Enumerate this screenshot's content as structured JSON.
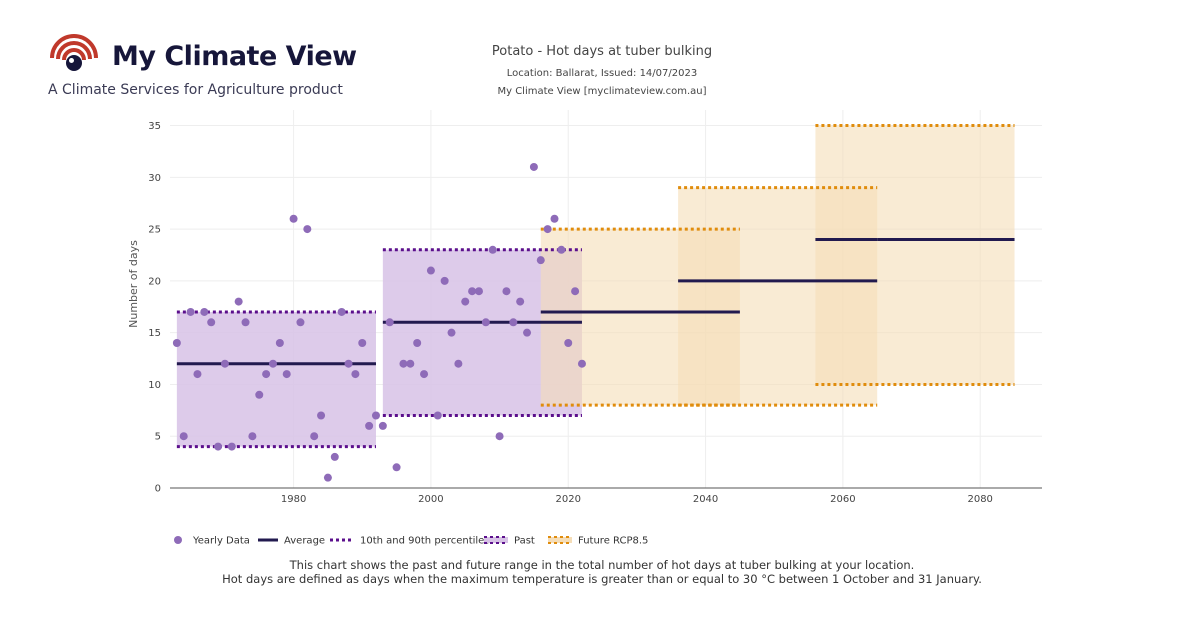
{
  "brand": {
    "name": "My Climate View",
    "tagline": "A Climate Services for Agriculture product",
    "colors": {
      "logo": "#c0392b",
      "name": "#16163a"
    }
  },
  "caption": {
    "line1": "This chart shows the past and future range in the total number of hot days at tuber bulking at your location.",
    "line2": "Hot days are defined as days when the maximum temperature is greater than or equal to 30 °C between 1 October and 31 January."
  },
  "chart_data": {
    "type": "scatter",
    "title": "Potato - Hot days at tuber bulking",
    "subtitle1": "Location: Ballarat, Issued: 14/07/2023",
    "subtitle2": "My Climate View [myclimateview.com.au]",
    "ylabel": "Number of days",
    "xlim": [
      1962,
      2089
    ],
    "ylim": [
      0,
      36.5
    ],
    "x_ticks": [
      1980,
      2000,
      2020,
      2040,
      2060,
      2080
    ],
    "y_ticks": [
      0,
      5,
      10,
      15,
      20,
      25,
      30,
      35
    ],
    "colors": {
      "points": "#8e6bb8",
      "average": "#221a4f",
      "past_fill": "#d7c2e6",
      "past_dots": "#5b0f8c",
      "future_fill": "#f5ddb7",
      "future_overlap": "#eec99a",
      "future_dots": "#e08c0c"
    },
    "yearly_data": {
      "x": [
        1963,
        1964,
        1965,
        1966,
        1967,
        1968,
        1969,
        1970,
        1971,
        1972,
        1973,
        1974,
        1975,
        1976,
        1977,
        1978,
        1979,
        1980,
        1981,
        1982,
        1983,
        1984,
        1985,
        1986,
        1987,
        1988,
        1989,
        1990,
        1991,
        1992,
        1993,
        1994,
        1995,
        1996,
        1997,
        1998,
        1999,
        2000,
        2001,
        2002,
        2003,
        2004,
        2005,
        2006,
        2007,
        2008,
        2009,
        2010,
        2011,
        2012,
        2013,
        2014,
        2015,
        2016,
        2017,
        2018,
        2019,
        2020,
        2021,
        2022
      ],
      "y": [
        14,
        5,
        17,
        11,
        17,
        16,
        4,
        12,
        4,
        18,
        16,
        5,
        9,
        11,
        12,
        14,
        11,
        26,
        16,
        25,
        5,
        7,
        1,
        3,
        17,
        12,
        11,
        14,
        6,
        7,
        6,
        16,
        2,
        12,
        12,
        14,
        11,
        21,
        7,
        20,
        15,
        12,
        18,
        19,
        19,
        16,
        23,
        5,
        19,
        16,
        18,
        15,
        31,
        22,
        25,
        26,
        23,
        14,
        19,
        12
      ]
    },
    "past_periods": [
      {
        "x": [
          1963,
          1992
        ],
        "p10": 4,
        "p90": 17,
        "average": 12
      },
      {
        "x": [
          1993,
          2022
        ],
        "p10": 7,
        "p90": 23,
        "average": 16
      }
    ],
    "future_periods": [
      {
        "x": [
          2016,
          2045
        ],
        "p10": 8,
        "p90": 25,
        "average": 17
      },
      {
        "x": [
          2036,
          2065
        ],
        "p10": 8,
        "p90": 29,
        "average": 20
      },
      {
        "x": [
          2056,
          2085
        ],
        "p10": 10,
        "p90": 35,
        "average": 24
      }
    ],
    "average_lines": [
      {
        "x": [
          1963,
          1992
        ],
        "y": 12
      },
      {
        "x": [
          1993,
          2022
        ],
        "y": 16
      },
      {
        "x": [
          2016,
          2045
        ],
        "y": 17
      },
      {
        "x": [
          2036,
          2065
        ],
        "y": 20
      },
      {
        "x": [
          2056,
          2065
        ],
        "y": 24
      },
      {
        "x": [
          2065,
          2085
        ],
        "y": 24
      }
    ],
    "legend": [
      {
        "kind": "point",
        "label": "Yearly Data"
      },
      {
        "kind": "line",
        "label": "Average"
      },
      {
        "kind": "dotted",
        "label": "10th and 90th percentiles"
      },
      {
        "kind": "past",
        "label": "Past"
      },
      {
        "kind": "future",
        "label": "Future RCP8.5"
      }
    ]
  }
}
